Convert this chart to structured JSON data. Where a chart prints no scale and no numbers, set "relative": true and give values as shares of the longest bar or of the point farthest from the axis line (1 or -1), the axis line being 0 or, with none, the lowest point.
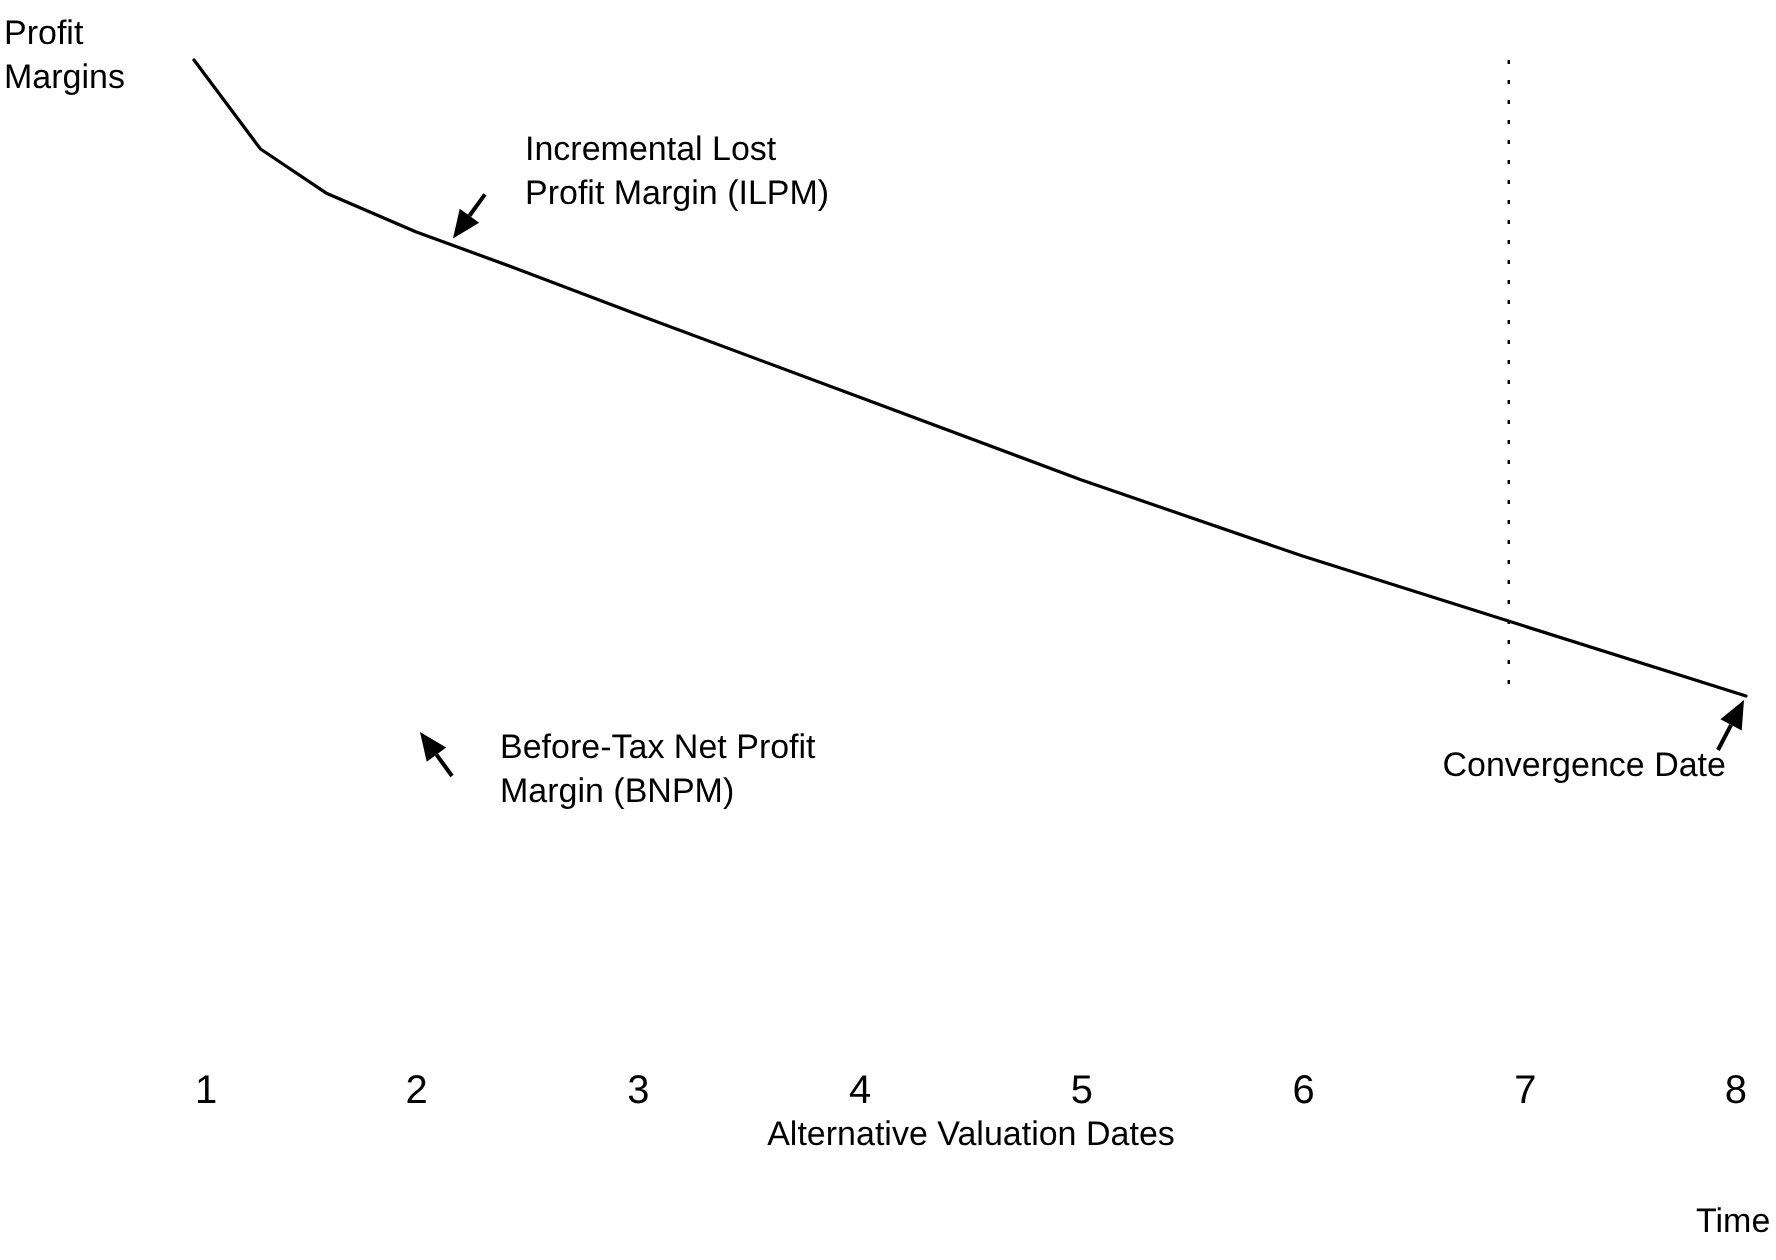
{
  "chart_data": {
    "type": "line",
    "relative": true,
    "ylabel": "Profit Margins",
    "xlabel": "Alternative Valuation Dates",
    "x": [
      1.0,
      1.3,
      1.6,
      2.0,
      2.47,
      3.0,
      4.0,
      5.0,
      6.0,
      7.0,
      8.0
    ],
    "xlim": [
      1,
      8
    ],
    "xticks": [
      1,
      2,
      3,
      4,
      5,
      6,
      7,
      8
    ],
    "series": [
      {
        "color": "#000000",
        "values": [
          1.0,
          0.86,
          0.79,
          0.73,
          0.67,
          0.6,
          0.47,
          0.34,
          0.22,
          0.11,
          0.0
        ]
      }
    ],
    "marker": "none",
    "line_style": "solid",
    "ref_lines": [
      {
        "axis": "x",
        "value": 6.93,
        "line_style": "dotted"
      }
    ],
    "annotations": [
      {
        "text": "Incremental Lost Profit Margin (ILPM)",
        "x": 2.15,
        "y": 0.71
      },
      "Before-Tax Net Profit Margin (BNPM)",
      {
        "text": "Convergence Date",
        "x": 8.0,
        "y": 0
      },
      "Time"
    ]
  }
}
